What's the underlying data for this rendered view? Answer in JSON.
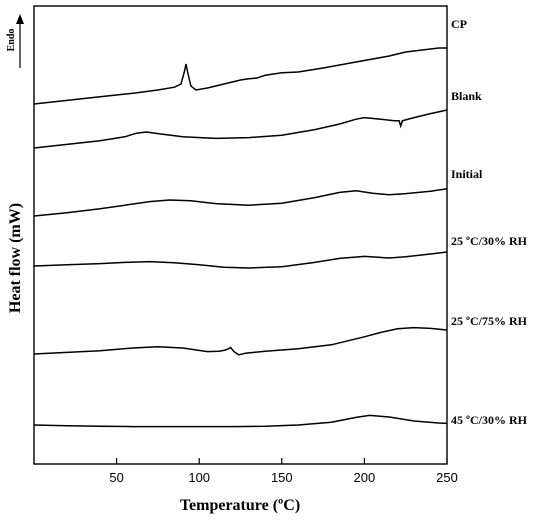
{
  "chart_data": {
    "type": "line",
    "xlabel": "Temperature (ºC)",
    "ylabel": "Heat flow (mW)",
    "xlim": [
      0,
      250
    ],
    "x_ticks": [
      50,
      100,
      150,
      200,
      250
    ],
    "y_ticks_shown": false,
    "grid": false,
    "annotation": "Endo",
    "annotation_arrow_direction": "up",
    "labels_placement": "right of each curve",
    "series": [
      {
        "name": "CP",
        "points": [
          [
            0,
            -6.0
          ],
          [
            20,
            -5.1
          ],
          [
            40,
            -4.2
          ],
          [
            60,
            -3.3
          ],
          [
            75,
            -2.5
          ],
          [
            85,
            -1.8
          ],
          [
            89,
            -1.0
          ],
          [
            91,
            2.0
          ],
          [
            92,
            4.0
          ],
          [
            93,
            2.0
          ],
          [
            95,
            -1.5
          ],
          [
            98,
            -2.5
          ],
          [
            105,
            -2.0
          ],
          [
            115,
            -1.0
          ],
          [
            125,
            0.0
          ],
          [
            130,
            0.3
          ],
          [
            135,
            0.5
          ],
          [
            140,
            1.2
          ],
          [
            150,
            1.8
          ],
          [
            160,
            2.0
          ],
          [
            175,
            3.0
          ],
          [
            195,
            4.5
          ],
          [
            215,
            6.0
          ],
          [
            225,
            7.0
          ],
          [
            235,
            7.5
          ],
          [
            245,
            8.0
          ],
          [
            250,
            8.0
          ]
        ]
      },
      {
        "name": "Blank",
        "points": [
          [
            0,
            0
          ],
          [
            20,
            0.9
          ],
          [
            40,
            1.8
          ],
          [
            55,
            2.8
          ],
          [
            62,
            3.7
          ],
          [
            68,
            4.0
          ],
          [
            75,
            3.6
          ],
          [
            90,
            2.8
          ],
          [
            110,
            2.4
          ],
          [
            130,
            2.6
          ],
          [
            150,
            3.2
          ],
          [
            170,
            4.6
          ],
          [
            185,
            6.0
          ],
          [
            195,
            7.2
          ],
          [
            200,
            7.6
          ],
          [
            210,
            7.2
          ],
          [
            218,
            6.8
          ],
          [
            221,
            6.8
          ],
          [
            222,
            5.5
          ],
          [
            223,
            6.8
          ],
          [
            230,
            7.6
          ],
          [
            240,
            8.6
          ],
          [
            250,
            9.5
          ]
        ]
      },
      {
        "name": "Initial",
        "points": [
          [
            0,
            0
          ],
          [
            20,
            0.8
          ],
          [
            40,
            1.8
          ],
          [
            55,
            2.7
          ],
          [
            70,
            3.6
          ],
          [
            82,
            4.0
          ],
          [
            95,
            3.8
          ],
          [
            110,
            3.1
          ],
          [
            130,
            2.7
          ],
          [
            150,
            3.2
          ],
          [
            170,
            4.6
          ],
          [
            185,
            5.9
          ],
          [
            195,
            6.3
          ],
          [
            205,
            5.7
          ],
          [
            215,
            5.3
          ],
          [
            225,
            5.6
          ],
          [
            240,
            6.2
          ],
          [
            250,
            6.8
          ]
        ]
      },
      {
        "name": "25 ºC/30% RH",
        "points": [
          [
            0,
            0
          ],
          [
            20,
            0.3
          ],
          [
            40,
            0.6
          ],
          [
            55,
            0.9
          ],
          [
            70,
            1.1
          ],
          [
            85,
            0.8
          ],
          [
            100,
            0.3
          ],
          [
            115,
            -0.3
          ],
          [
            130,
            -0.5
          ],
          [
            150,
            -0.2
          ],
          [
            170,
            0.9
          ],
          [
            185,
            1.9
          ],
          [
            200,
            2.4
          ],
          [
            215,
            2.0
          ],
          [
            225,
            2.3
          ],
          [
            240,
            3.0
          ],
          [
            250,
            3.5
          ]
        ]
      },
      {
        "name": "25 ºC/75% RH",
        "points": [
          [
            0,
            0
          ],
          [
            20,
            0.4
          ],
          [
            40,
            0.8
          ],
          [
            60,
            1.5
          ],
          [
            75,
            1.8
          ],
          [
            90,
            1.5
          ],
          [
            105,
            0.6
          ],
          [
            112,
            0.7
          ],
          [
            116,
            1.0
          ],
          [
            119,
            1.6
          ],
          [
            121,
            0.6
          ],
          [
            124,
            -0.2
          ],
          [
            128,
            0.2
          ],
          [
            140,
            0.7
          ],
          [
            160,
            1.3
          ],
          [
            180,
            2.3
          ],
          [
            190,
            3.3
          ],
          [
            200,
            4.3
          ],
          [
            210,
            5.4
          ],
          [
            220,
            6.3
          ],
          [
            230,
            6.6
          ],
          [
            240,
            6.4
          ],
          [
            250,
            6.0
          ]
        ]
      },
      {
        "name": "45 ºC/30% RH",
        "points": [
          [
            0,
            0
          ],
          [
            20,
            -0.2
          ],
          [
            40,
            -0.3
          ],
          [
            60,
            -0.4
          ],
          [
            80,
            -0.4
          ],
          [
            100,
            -0.4
          ],
          [
            120,
            -0.4
          ],
          [
            140,
            -0.3
          ],
          [
            160,
            0.0
          ],
          [
            180,
            0.7
          ],
          [
            195,
            1.9
          ],
          [
            203,
            2.4
          ],
          [
            215,
            2.0
          ],
          [
            230,
            1.0
          ],
          [
            245,
            0.5
          ],
          [
            250,
            0.4
          ]
        ]
      }
    ]
  }
}
